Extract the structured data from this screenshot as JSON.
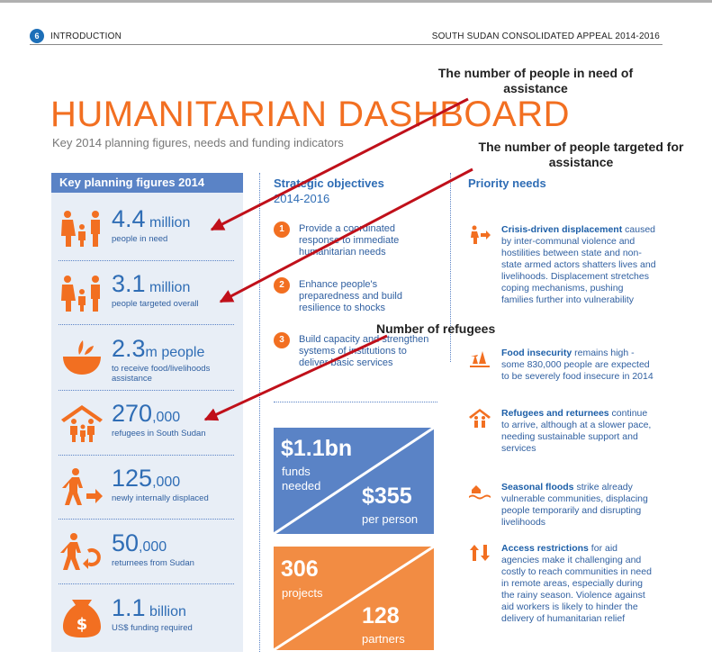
{
  "header": {
    "page_number": "6",
    "section": "INTRODUCTION",
    "document_title": "SOUTH SUDAN CONSOLIDATED APPEAL 2014-2016"
  },
  "title": "HUMANITARIAN DASHBOARD",
  "subtitle": "Key 2014 planning figures, needs and funding indicators",
  "key_planning": {
    "heading": "Key planning figures 2014",
    "items": [
      {
        "icon": "family-icon",
        "figure": "4.4",
        "unit": " million",
        "desc": "people in need"
      },
      {
        "icon": "family-icon",
        "figure": "3.1",
        "unit": " million",
        "desc": "people targeted overall"
      },
      {
        "icon": "food-bowl-icon",
        "figure": "2.3",
        "unit": "m people",
        "desc": "to receive food/livelihoods assistance"
      },
      {
        "icon": "shelter-family-icon",
        "figure": "270",
        "unit": ",000",
        "desc": "refugees in South Sudan"
      },
      {
        "icon": "displaced-person-icon",
        "figure": "125",
        "unit": ",000",
        "desc": "newly internally displaced"
      },
      {
        "icon": "returnee-icon",
        "figure": "50",
        "unit": ",000",
        "desc": "returnees from Sudan"
      },
      {
        "icon": "money-bag-icon",
        "figure": "1.1",
        "unit": " billion",
        "desc": "US$ funding required"
      }
    ]
  },
  "strategic": {
    "heading": "Strategic objectives",
    "years": "2014-2016",
    "items": [
      {
        "num": "1",
        "text": "Provide a coordinated response to immediate humanitarian needs"
      },
      {
        "num": "2",
        "text": "Enhance people's preparedness and build resilience to shocks"
      },
      {
        "num": "3",
        "text": "Build capacity and strengthen systems of institutions to deliver basic services"
      }
    ],
    "funds": {
      "amount": "$1.1bn",
      "label": "funds needed",
      "per_person": "$355",
      "per_label": "per person"
    },
    "projects": {
      "count": "306",
      "label": "projects",
      "partners": "128",
      "partners_label": "partners"
    }
  },
  "priority": {
    "heading": "Priority needs",
    "items": [
      {
        "icon": "displacement-icon",
        "bold": "Crisis-driven displacement",
        "text": " caused by inter-communal violence and hostilities between state and non-state armed actors shatters lives and livelihoods. Displacement stretches coping mechanisms, pushing families further into vulnerability"
      },
      {
        "icon": "food-insecurity-icon",
        "bold": "Food insecurity",
        "text": " remains high - some 830,000 people are expected to be severely food insecure in 2014"
      },
      {
        "icon": "refugees-icon",
        "bold": "Refugees and returnees",
        "text": " continue to arrive, although at a slower pace, needing sustainable support and services"
      },
      {
        "icon": "flood-icon",
        "bold": "Seasonal floods",
        "text": " strike already vulnerable communities, displacing people temporarily and disrupting livelihoods"
      },
      {
        "icon": "access-icon",
        "bold": "Access restrictions",
        "text": " for aid agencies make it challenging and costly to reach communities in need in remote areas, especially during the rainy season. Violence against aid workers is likely to hinder the delivery of humanitarian relief"
      }
    ]
  },
  "annotations": {
    "in_need": "The number of people in need of assistance",
    "targeted": "The number of people targeted for assistance",
    "refugees": "Number of refugees"
  },
  "colors": {
    "orange": "#f26f21",
    "blue": "#2f6db5",
    "panel": "#e8eef6",
    "box_blue": "#5a83c6",
    "arrow": "#c0101a"
  }
}
